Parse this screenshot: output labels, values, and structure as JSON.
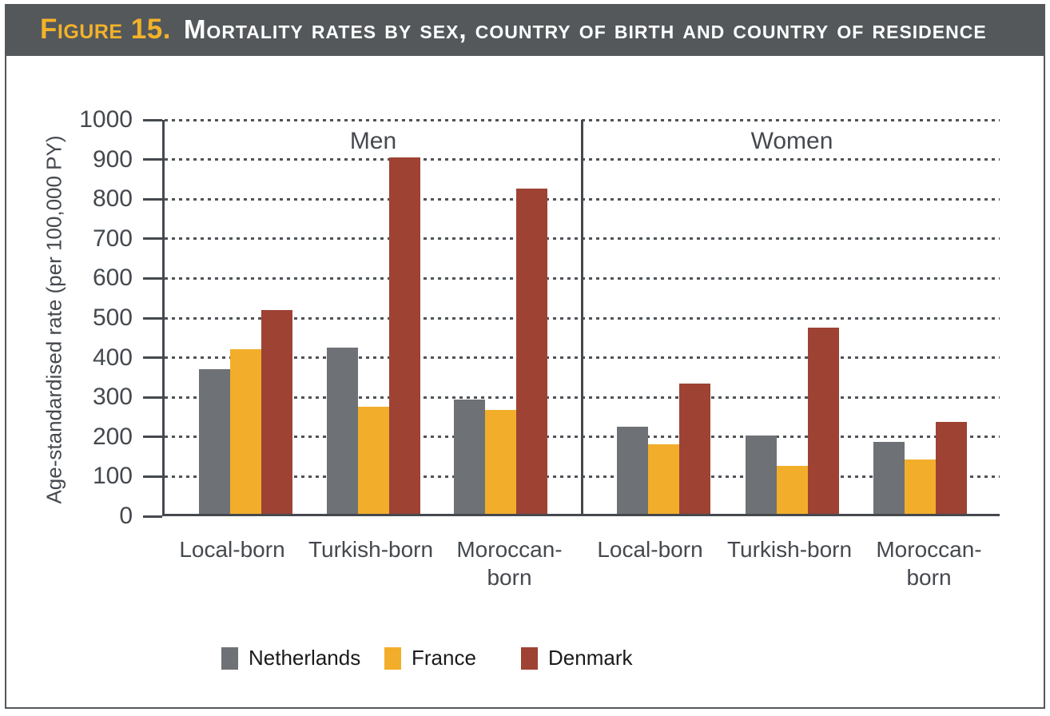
{
  "header": {
    "figure_label": "Figure 15.",
    "title": "Mortality rates by sex, country of birth and country of residence"
  },
  "chart_data": {
    "type": "bar",
    "title": "Mortality rates by sex, country of birth and country of residence",
    "xlabel": "",
    "ylabel": "Age-standardised rate (per 100,000 PY)",
    "ylim": [
      0,
      1000
    ],
    "ytick_step": 100,
    "grid": "horizontal-dotted",
    "panels": [
      {
        "title": "Men",
        "categories": [
          "Local-born",
          "Turkish-born",
          "Moroccan-born"
        ],
        "series": [
          {
            "name": "Netherlands",
            "values": [
              365,
              420,
              288
            ]
          },
          {
            "name": "France",
            "values": [
              415,
              270,
              262
            ]
          },
          {
            "name": "Denmark",
            "values": [
              515,
              900,
              820
            ]
          }
        ]
      },
      {
        "title": "Women",
        "categories": [
          "Local-born",
          "Turkish-born",
          "Moroccan-born"
        ],
        "series": [
          {
            "name": "Netherlands",
            "values": [
              220,
              198,
              182
            ]
          },
          {
            "name": "France",
            "values": [
              175,
              120,
              137
            ]
          },
          {
            "name": "Denmark",
            "values": [
              328,
              470,
              232
            ]
          }
        ]
      }
    ],
    "legend": {
      "position": "bottom",
      "entries": [
        {
          "label": "Netherlands",
          "color": "#6E7175"
        },
        {
          "label": "France",
          "color": "#F2AE2B"
        },
        {
          "label": "Denmark",
          "color": "#9E4234"
        }
      ]
    }
  },
  "colors": {
    "header_background": "#54585B",
    "figure_label_accent": "#F3B229",
    "header_title_text": "#FFFFFF",
    "axis_and_text": "#45494E",
    "gridline": "#4F5357",
    "border": "#54585B",
    "netherlands": "#6E7175",
    "france": "#F2AE2B",
    "denmark": "#9E4234"
  }
}
